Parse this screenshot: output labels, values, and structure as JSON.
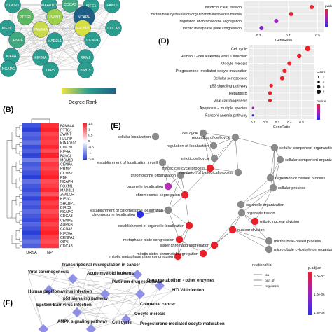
{
  "panels": {
    "b": "(B)",
    "d": "(D)",
    "e": "(E)",
    "f": "(F)"
  },
  "panel_a": {
    "legend_title": "Degree Rank",
    "nodes": [
      "CDKN3",
      "KIAA0101",
      "CDCA3",
      "KIFC1",
      "FANCI",
      "PTTG1",
      "ZWINT",
      "NCAPH",
      "KIF2C",
      "FAM64A",
      "SHCBP1",
      "CDCA8",
      "CENPE",
      "MAD2L1",
      "CENPA",
      "KIF4A",
      "KIF20A",
      "RRM2",
      "NCAPG",
      "OIP5",
      "BIRC5"
    ],
    "colors": {
      "low": "#f0e442",
      "mid": "#2a9d8f",
      "high": "#1f5f86"
    }
  },
  "panel_c_top": {
    "terms": [
      "mitotic nuclear division",
      "microtubule cytoskeleton organization involved in mitosis",
      "regulation of chromosome segregation",
      "mitotic metaphase plate congression"
    ],
    "gene_ratio": [
      0.48,
      0.41,
      0.36,
      0.31
    ],
    "x_ticks": [
      "0.3",
      "0.4",
      "0.5"
    ],
    "x_label": "GeneRatio",
    "legend_title": "pvalue"
  },
  "chart_data": [
    {
      "type": "scatter",
      "title": "",
      "xlabel": "GeneRatio",
      "ylabel": "",
      "xlim": [
        0.07,
        0.6
      ],
      "x_ticks": [
        "0.1",
        "0.2",
        "0.3",
        "0.4",
        "0.5"
      ],
      "categories": [
        "Cell cycle",
        "Human T−cell leukemia virus 1 infection",
        "Oocyte meiosis",
        "Progesterone−mediated oocyte maturation",
        "Cellular senescence",
        "p53 signaling pathway",
        "Hepatitis B",
        "Viral carcinogenesis",
        "Apoptosis − multiple species",
        "Fanconi anemia pathway"
      ],
      "x": [
        0.55,
        0.48,
        0.4,
        0.36,
        0.34,
        0.25,
        0.24,
        0.24,
        0.1,
        0.1
      ],
      "count_legend_title": "Count",
      "count_legend_values": [
        "2",
        "4",
        "6",
        "8"
      ],
      "pvalue_legend_title": "pvalue"
    },
    {
      "type": "heatmap",
      "title": "",
      "columns": [
        "URSA",
        "NP"
      ],
      "rows": [
        "FAM64A",
        "PTTG1",
        "ZWINT",
        "HJURP",
        "KIAA0101",
        "CDC20",
        "KIF4A",
        "FANCI",
        "MCM10",
        "CENPA",
        "RRM2",
        "CCNB2",
        "PBK",
        "NCAPH",
        "FOXM1",
        "MAD2L1",
        "ZWILCH",
        "KIF2C",
        "SHCBP1",
        "BIRC5",
        "NCAPG",
        "CDCA3",
        "CENPE",
        "AURKB",
        "CCNA2",
        "KIF20A",
        "CENPA2",
        "OIP5",
        "CDCA8"
      ],
      "scale_ticks": [
        "1.5",
        "1",
        "0.5",
        "0",
        "-0.5",
        "-1",
        "-1.5"
      ],
      "values_urs": [
        -1.35,
        -1.5,
        -1.2,
        -1.3,
        -1.1,
        -1.4,
        -1.25,
        -1.45,
        -1.0,
        -1.3,
        -1.2,
        -1.35,
        -1.5,
        -1.1,
        -1.3,
        -1.4,
        -1.2,
        -1.45,
        -1.25,
        -1.35,
        -1.15,
        -1.3,
        -1.4,
        -1.2,
        -1.35,
        -1.5,
        -1.3,
        -1.1,
        -1.25
      ],
      "values_np": [
        1.4,
        1.5,
        1.25,
        1.35,
        1.3,
        1.45,
        1.2,
        1.5,
        1.1,
        1.35,
        1.25,
        1.4,
        1.5,
        1.2,
        1.3,
        1.45,
        1.15,
        1.5,
        1.3,
        1.4,
        1.2,
        1.35,
        1.45,
        1.25,
        1.4,
        1.5,
        1.3,
        1.2,
        1.35
      ]
    }
  ],
  "panel_e": {
    "nodes": [
      "cellular localization",
      "cell cycle",
      "regulation of cell cycle",
      "regulation of localization",
      "cellular component organization or biogenesis",
      "establishment of localization in cell",
      "mitotic cell cycle",
      "mitotic cell cycle process",
      "cellular component organization",
      "regulation of biological process",
      "regulation of cellular process",
      "chromosome organization",
      "organelle localization",
      "chromosome segregation",
      "cellular process",
      "organelle organization",
      "establishment of chromosome localization",
      "organelle fission",
      "mitotic nuclear division",
      "nuclear division",
      "microtubule-based process",
      "sister chromatid segregation",
      "metaphase plate congression",
      "microtubule cytoskeleton organization involved in mitosis",
      "mitotic sister chromatid segregation",
      "mitotic metaphase plate congression",
      "establishment of organelle localization",
      "chromosome localization"
    ],
    "relationship_title": "relationship",
    "relationships": [
      "isa",
      "part of",
      "regulates"
    ],
    "padjust_title": "p.adjust",
    "padjust_ticks": [
      "5.0e-07",
      "1.0e-06",
      "1.5e-06"
    ]
  },
  "panel_f": {
    "nodes": [
      "Transcriptional misregulation in cancer",
      "Acute myeloid leukemia",
      "Viral carcinogenesis",
      "Platinum drug resistance",
      "Drug metabolism - other enzymes",
      "Human papillomavirus infection",
      "p53 signaling pathway",
      "HTLV-I infection",
      "Epstein-Barr virus infection",
      "Colorectal cancer",
      "Oocyte meiosis",
      "AMPK signaling pathway",
      "Cell cycle",
      "Progesterone-mediated oocyte maturation"
    ]
  }
}
